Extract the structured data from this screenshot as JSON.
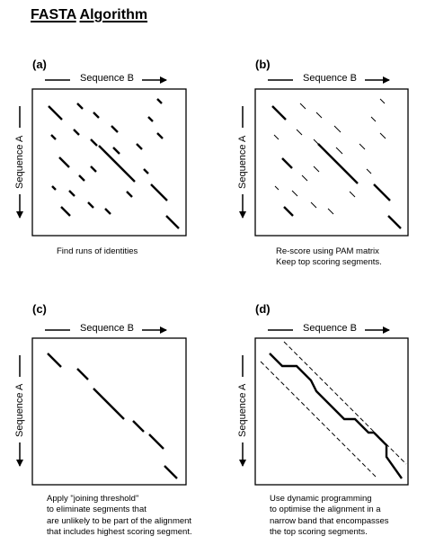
{
  "title": {
    "word1": "FASTA",
    "word2": "Algorithm"
  },
  "axes": {
    "x_label": "Sequence B",
    "y_label": "Sequence A"
  },
  "panels": [
    {
      "label": "(a)",
      "caption": [
        "Find runs of identities"
      ]
    },
    {
      "label": "(b)",
      "caption": [
        "Re-score using PAM matrix",
        "Keep top scoring segments."
      ]
    },
    {
      "label": "(c)",
      "caption": [
        "Apply \"joining threshold\"",
        "to eliminate segments that",
        "are unlikely to be part of the alignment",
        "that includes highest scoring segment."
      ]
    },
    {
      "label": "(d)",
      "caption": [
        "Use dynamic programming",
        "to optimise the alignment in a",
        "narrow band that encompasses",
        "the top scoring segments."
      ]
    }
  ]
}
